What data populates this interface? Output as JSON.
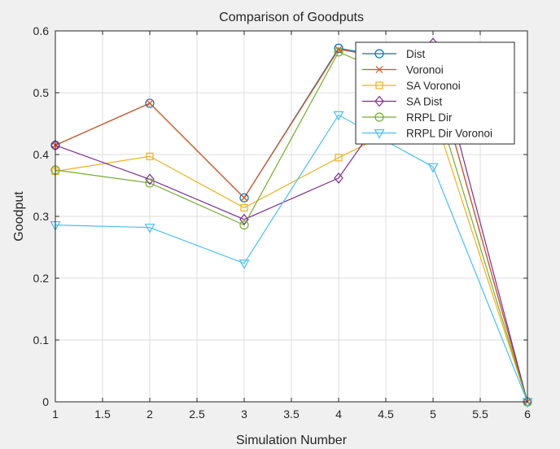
{
  "chart_data": {
    "type": "line",
    "title": "Comparison of Goodputs",
    "xlabel": "Simulation Number",
    "ylabel": "Goodput",
    "xlim": [
      1,
      6
    ],
    "ylim": [
      0,
      0.6
    ],
    "grid": true,
    "legend_position": "top-right",
    "x": [
      1,
      2,
      3,
      4,
      5,
      6
    ],
    "x_ticks": [
      1,
      1.5,
      2,
      2.5,
      3,
      3.5,
      4,
      4.5,
      5,
      5.5,
      6
    ],
    "x_tick_labels": [
      "1",
      "1.5",
      "2",
      "2.5",
      "3",
      "3.5",
      "4",
      "4.5",
      "5",
      "5.5",
      "6"
    ],
    "y_ticks": [
      0,
      0.1,
      0.2,
      0.3,
      0.4,
      0.5,
      0.6
    ],
    "y_tick_labels": [
      "0",
      "0.1",
      "0.2",
      "0.3",
      "0.4",
      "0.5",
      "0.6"
    ],
    "series": [
      {
        "name": "Dist",
        "marker": "circle",
        "color": "#0072bd",
        "values": [
          0.415,
          0.483,
          0.33,
          0.572,
          0.545,
          0.0
        ]
      },
      {
        "name": "Voronoi",
        "marker": "x",
        "color": "#d95319",
        "values": [
          0.415,
          0.483,
          0.33,
          0.57,
          0.545,
          0.0
        ]
      },
      {
        "name": "SA Voronoi",
        "marker": "square",
        "color": "#edb120",
        "values": [
          0.373,
          0.397,
          0.314,
          0.395,
          0.47,
          0.0
        ]
      },
      {
        "name": "SA Dist",
        "marker": "diamond",
        "color": "#7e2f8e",
        "values": [
          0.415,
          0.36,
          0.295,
          0.362,
          0.58,
          0.0
        ]
      },
      {
        "name": "RRPL Dir",
        "marker": "circle",
        "color": "#77ac30",
        "values": [
          0.375,
          0.354,
          0.286,
          0.566,
          0.5,
          0.0
        ]
      },
      {
        "name": "RRPL Dir Voronoi",
        "marker": "triangle-down",
        "color": "#4dbeee",
        "values": [
          0.286,
          0.282,
          0.224,
          0.464,
          0.38,
          0.0
        ]
      }
    ]
  }
}
